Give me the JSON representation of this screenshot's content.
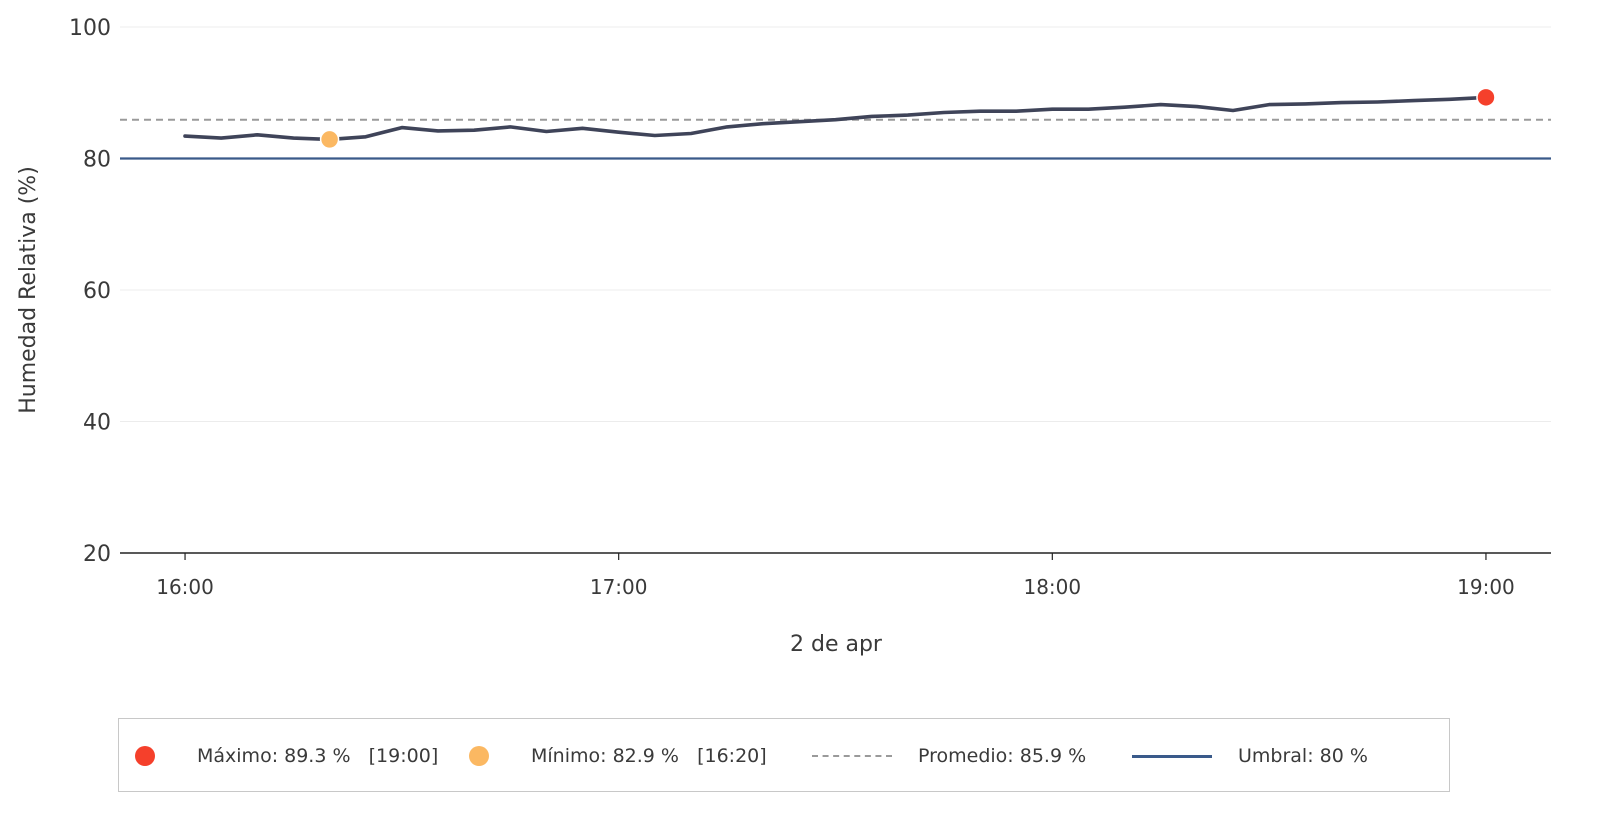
{
  "chart_data": {
    "type": "line",
    "xlabel": "2 de apr",
    "ylabel": "Humedad Relativa (%)",
    "ylim": [
      20,
      100
    ],
    "yticks": [
      "20",
      "40",
      "60",
      "80",
      "100"
    ],
    "xticks": [
      "16:00",
      "17:00",
      "18:00",
      "19:00"
    ],
    "xlim_minutes_from_16": [
      -9,
      189
    ],
    "grid": "horizontal",
    "legend_position": "bottom",
    "series": [
      {
        "type": "line",
        "color": "#3f4459",
        "points": [
          {
            "t": "16:00",
            "y": 83.4
          },
          {
            "t": "16:05",
            "y": 83.1
          },
          {
            "t": "16:10",
            "y": 83.6
          },
          {
            "t": "16:15",
            "y": 83.1
          },
          {
            "t": "16:20",
            "y": 82.9
          },
          {
            "t": "16:25",
            "y": 83.3
          },
          {
            "t": "16:30",
            "y": 84.7
          },
          {
            "t": "16:35",
            "y": 84.2
          },
          {
            "t": "16:40",
            "y": 84.3
          },
          {
            "t": "16:45",
            "y": 84.8
          },
          {
            "t": "16:50",
            "y": 84.1
          },
          {
            "t": "16:55",
            "y": 84.6
          },
          {
            "t": "17:00",
            "y": 84.0
          },
          {
            "t": "17:05",
            "y": 83.5
          },
          {
            "t": "17:10",
            "y": 83.8
          },
          {
            "t": "17:15",
            "y": 84.8
          },
          {
            "t": "17:20",
            "y": 85.3
          },
          {
            "t": "17:25",
            "y": 85.6
          },
          {
            "t": "17:30",
            "y": 85.9
          },
          {
            "t": "17:35",
            "y": 86.4
          },
          {
            "t": "17:40",
            "y": 86.6
          },
          {
            "t": "17:45",
            "y": 87.0
          },
          {
            "t": "17:50",
            "y": 87.2
          },
          {
            "t": "17:55",
            "y": 87.2
          },
          {
            "t": "18:00",
            "y": 87.5
          },
          {
            "t": "18:05",
            "y": 87.5
          },
          {
            "t": "18:10",
            "y": 87.8
          },
          {
            "t": "18:15",
            "y": 88.2
          },
          {
            "t": "18:20",
            "y": 87.9
          },
          {
            "t": "18:25",
            "y": 87.3
          },
          {
            "t": "18:30",
            "y": 88.2
          },
          {
            "t": "18:35",
            "y": 88.3
          },
          {
            "t": "18:40",
            "y": 88.5
          },
          {
            "t": "18:45",
            "y": 88.6
          },
          {
            "t": "18:50",
            "y": 88.8
          },
          {
            "t": "18:55",
            "y": 89.0
          },
          {
            "t": "19:00",
            "y": 89.3
          }
        ]
      }
    ],
    "max_point": {
      "t": "19:00",
      "y": 89.3,
      "color": "#f5402b"
    },
    "min_point": {
      "t": "16:20",
      "y": 82.9,
      "color": "#fbb862"
    },
    "average_line": {
      "y": 85.9,
      "color": "#9a9a9a",
      "style": "dashed"
    },
    "threshold_line": {
      "y": 80,
      "color": "#3a5a8a",
      "style": "solid"
    },
    "legend": {
      "max_label": "Máximo: 89.3 %   [19:00]",
      "min_label": "Mínimo: 82.9 %   [16:20]",
      "avg_label": "Promedio: 85.9 %",
      "threshold_label": "Umbral: 80 %"
    }
  }
}
